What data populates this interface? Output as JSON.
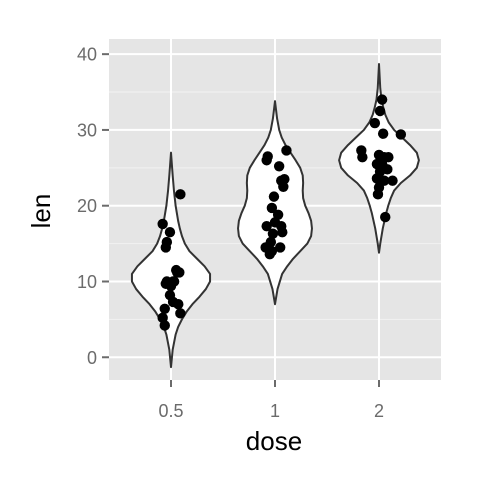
{
  "chart_data": {
    "type": "violin",
    "xlabel": "dose",
    "ylabel": "len",
    "categories": [
      "0.5",
      "1",
      "2"
    ],
    "ylim": [
      -3.0,
      42.0
    ],
    "yticks": [
      0,
      10,
      20,
      30,
      40
    ],
    "grid": true,
    "legend": "none",
    "colors": {
      "panel": "#e5e5e5",
      "grid": "#ffffff",
      "violin_fill": "#ffffff",
      "violin_stroke": "#333333",
      "point": "#000000",
      "tick_text": "#6b6b6b",
      "tick_mark": "#6b6b6b",
      "axis_title": "#000000"
    },
    "groups": [
      {
        "category": "0.5",
        "min": -1.3,
        "max": 27.0,
        "density": [
          [
            -1.3,
            0.0
          ],
          [
            1.0,
            0.04
          ],
          [
            3.0,
            0.11
          ],
          [
            4.0,
            0.17
          ],
          [
            5.0,
            0.26
          ],
          [
            6.0,
            0.37
          ],
          [
            7.0,
            0.51
          ],
          [
            8.0,
            0.68
          ],
          [
            9.0,
            0.83
          ],
          [
            10.0,
            0.93
          ],
          [
            11.0,
            0.93
          ],
          [
            12.0,
            0.8
          ],
          [
            13.0,
            0.62
          ],
          [
            14.0,
            0.44
          ],
          [
            15.0,
            0.33
          ],
          [
            16.0,
            0.26
          ],
          [
            17.0,
            0.21
          ],
          [
            18.0,
            0.17
          ],
          [
            19.0,
            0.14
          ],
          [
            20.0,
            0.11
          ],
          [
            21.0,
            0.09
          ],
          [
            22.0,
            0.07
          ],
          [
            24.0,
            0.04
          ],
          [
            27.0,
            0.0
          ]
        ],
        "points": [
          [
            -0.06,
            4.2
          ],
          [
            -0.08,
            5.2
          ],
          [
            -0.06,
            6.4
          ],
          [
            -0.05,
            9.7
          ],
          [
            -0.04,
            10.0
          ],
          [
            0.02,
            7.3
          ],
          [
            -0.01,
            8.2
          ],
          [
            0.0,
            9.4
          ],
          [
            0.02,
            10.0
          ],
          [
            0.03,
            10.0
          ],
          [
            0.06,
            11.2
          ],
          [
            0.08,
            11.2
          ],
          [
            0.05,
            11.5
          ],
          [
            0.07,
            7.0
          ],
          [
            0.09,
            5.8
          ],
          [
            -0.05,
            14.5
          ],
          [
            -0.04,
            15.2
          ],
          [
            -0.08,
            17.6
          ],
          [
            -0.01,
            16.5
          ],
          [
            0.09,
            21.5
          ]
        ]
      },
      {
        "category": "1",
        "min": 7.0,
        "max": 33.8,
        "density": [
          [
            7.0,
            0.0
          ],
          [
            9.0,
            0.06
          ],
          [
            11.0,
            0.17
          ],
          [
            12.0,
            0.29
          ],
          [
            13.0,
            0.43
          ],
          [
            14.0,
            0.6
          ],
          [
            15.0,
            0.77
          ],
          [
            16.0,
            0.86
          ],
          [
            17.0,
            0.88
          ],
          [
            18.0,
            0.86
          ],
          [
            19.0,
            0.8
          ],
          [
            20.0,
            0.72
          ],
          [
            21.0,
            0.67
          ],
          [
            22.0,
            0.66
          ],
          [
            23.0,
            0.67
          ],
          [
            24.0,
            0.66
          ],
          [
            25.0,
            0.6
          ],
          [
            26.0,
            0.49
          ],
          [
            27.0,
            0.37
          ],
          [
            28.0,
            0.25
          ],
          [
            29.0,
            0.16
          ],
          [
            30.0,
            0.1
          ],
          [
            31.5,
            0.05
          ],
          [
            33.8,
            0.0
          ]
        ],
        "points": [
          [
            -0.08,
            26.0
          ],
          [
            -0.07,
            26.5
          ],
          [
            0.04,
            25.2
          ],
          [
            0.09,
            23.5
          ],
          [
            0.06,
            23.3
          ],
          [
            0.08,
            22.5
          ],
          [
            0.11,
            27.3
          ],
          [
            -0.01,
            21.2
          ],
          [
            -0.03,
            19.7
          ],
          [
            0.03,
            18.8
          ],
          [
            -0.08,
            17.3
          ],
          [
            0.06,
            17.3
          ],
          [
            0.07,
            16.5
          ],
          [
            -0.02,
            16.3
          ],
          [
            -0.04,
            15.2
          ],
          [
            -0.09,
            14.5
          ],
          [
            0.05,
            14.5
          ],
          [
            -0.03,
            14.0
          ],
          [
            -0.05,
            13.6
          ],
          [
            0.0,
            17.8
          ]
        ]
      },
      {
        "category": "2",
        "min": 13.8,
        "max": 38.7,
        "density": [
          [
            13.8,
            0.0
          ],
          [
            15.0,
            0.03
          ],
          [
            17.0,
            0.09
          ],
          [
            19.0,
            0.17
          ],
          [
            20.0,
            0.22
          ],
          [
            21.0,
            0.28
          ],
          [
            22.0,
            0.36
          ],
          [
            23.0,
            0.52
          ],
          [
            24.0,
            0.74
          ],
          [
            25.0,
            0.9
          ],
          [
            26.0,
            0.95
          ],
          [
            27.0,
            0.9
          ],
          [
            28.0,
            0.74
          ],
          [
            29.0,
            0.55
          ],
          [
            30.0,
            0.36
          ],
          [
            31.0,
            0.23
          ],
          [
            32.0,
            0.15
          ],
          [
            33.0,
            0.1
          ],
          [
            34.0,
            0.06
          ],
          [
            35.5,
            0.03
          ],
          [
            38.7,
            0.0
          ]
        ],
        "points": [
          [
            0.03,
            34.0
          ],
          [
            0.01,
            32.5
          ],
          [
            -0.04,
            30.9
          ],
          [
            0.04,
            29.5
          ],
          [
            0.21,
            29.4
          ],
          [
            -0.17,
            27.3
          ],
          [
            -0.16,
            26.4
          ],
          [
            0.0,
            26.7
          ],
          [
            0.05,
            26.4
          ],
          [
            0.09,
            26.4
          ],
          [
            -0.02,
            25.5
          ],
          [
            0.03,
            25.5
          ],
          [
            0.08,
            24.8
          ],
          [
            0.01,
            24.5
          ],
          [
            -0.02,
            23.6
          ],
          [
            0.05,
            23.3
          ],
          [
            0.13,
            23.3
          ],
          [
            0.0,
            22.4
          ],
          [
            -0.01,
            21.5
          ],
          [
            0.06,
            18.5
          ]
        ]
      }
    ]
  }
}
